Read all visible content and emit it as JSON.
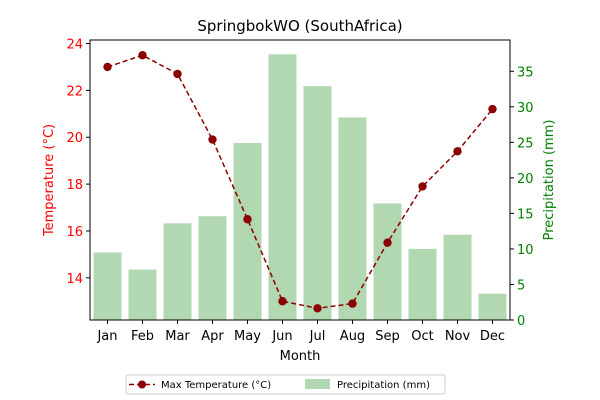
{
  "chart_data": {
    "type": "bar+line",
    "title": "SpringbokWO (SouthAfrica)",
    "xlabel": "Month",
    "categories": [
      "Jan",
      "Feb",
      "Mar",
      "Apr",
      "May",
      "Jun",
      "Jul",
      "Aug",
      "Sep",
      "Oct",
      "Nov",
      "Dec"
    ],
    "left_axis": {
      "label": "Temperature (°C)",
      "color": "#ff0000",
      "range": [
        12.2,
        24.15
      ],
      "ticks": [
        14,
        16,
        18,
        20,
        22,
        24
      ]
    },
    "right_axis": {
      "label": "Precipitation (mm)",
      "color": "#008000",
      "range": [
        0,
        39.4
      ],
      "ticks": [
        0,
        5,
        10,
        15,
        20,
        25,
        30,
        35
      ]
    },
    "series": [
      {
        "name": "Max Temperature (°C)",
        "kind": "line",
        "axis": "left",
        "color": "#8b0000",
        "style": "dashed-with-circle-markers",
        "values": [
          23.0,
          23.5,
          22.7,
          19.9,
          16.5,
          13.0,
          12.7,
          12.9,
          15.5,
          17.9,
          19.4,
          21.2
        ]
      },
      {
        "name": "Precipitation (mm)",
        "kind": "bar",
        "axis": "right",
        "color": "#b2d8b2",
        "values": [
          9.5,
          7.1,
          13.6,
          14.6,
          24.9,
          37.4,
          32.9,
          28.5,
          16.4,
          10.0,
          12.0,
          3.7
        ]
      }
    ],
    "legend": {
      "placement": "bottom-center",
      "columns": 2
    }
  }
}
